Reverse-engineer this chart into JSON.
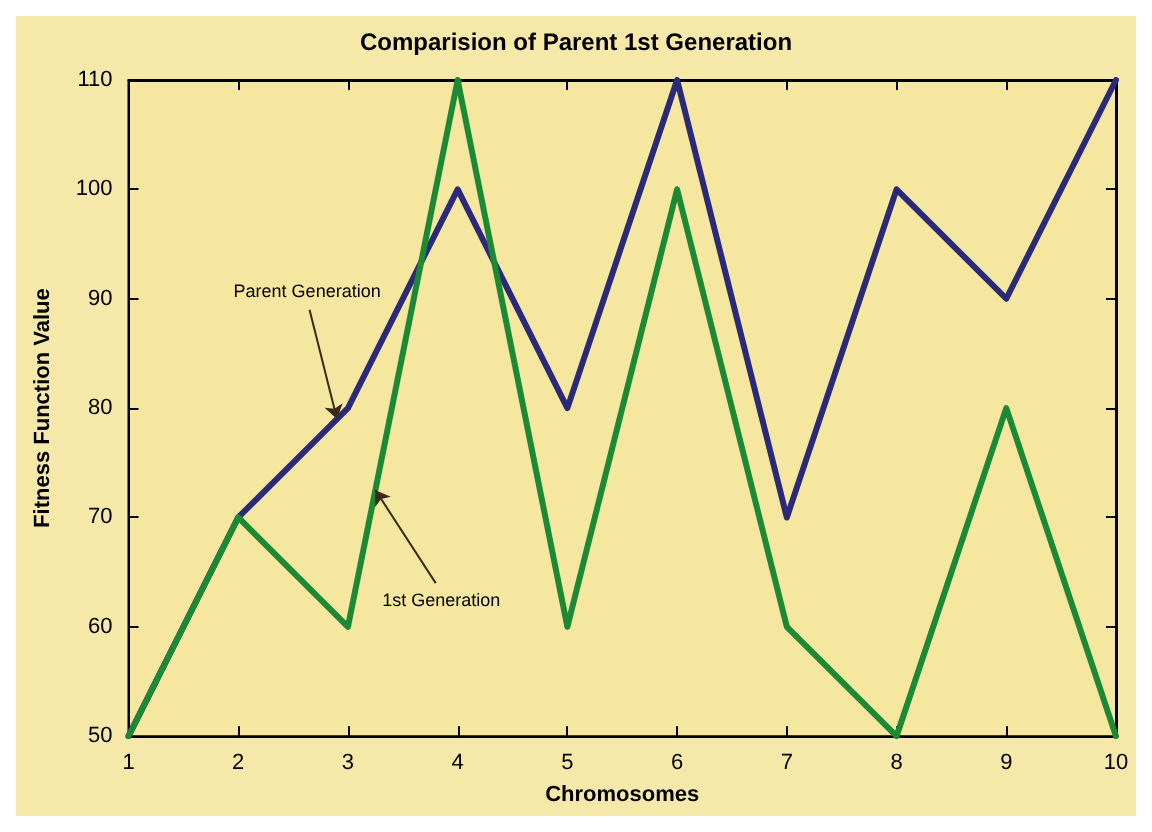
{
  "chart_data": {
    "type": "line",
    "title": "Comparision of Parent 1st Generation",
    "xlabel": "Chromosomes",
    "ylabel": "Fitness Function Value",
    "x": [
      1,
      2,
      3,
      4,
      5,
      6,
      7,
      8,
      9,
      10
    ],
    "series": [
      {
        "color": "#2a2a78",
        "values": [
          50,
          70,
          80,
          100,
          80,
          110,
          70,
          100,
          90,
          110
        ]
      },
      {
        "color": "#1c8a34",
        "values": [
          50,
          70,
          60,
          110,
          60,
          100,
          60,
          50,
          80,
          50
        ]
      }
    ],
    "xlim": [
      1,
      10
    ],
    "xticks": [
      1,
      2,
      3,
      4,
      5,
      6,
      7,
      8,
      9,
      10
    ],
    "ylim": [
      50,
      110
    ],
    "yticks": [
      50,
      60,
      70,
      80,
      90,
      100,
      110
    ],
    "grid": false,
    "marker": "none",
    "line_style": "solid",
    "annotations": [
      {
        "text": "Parent Generation",
        "x": 2.9,
        "y": 79
      },
      {
        "text": "1st Generation",
        "x": 3.25,
        "y": 72.5
      }
    ]
  }
}
